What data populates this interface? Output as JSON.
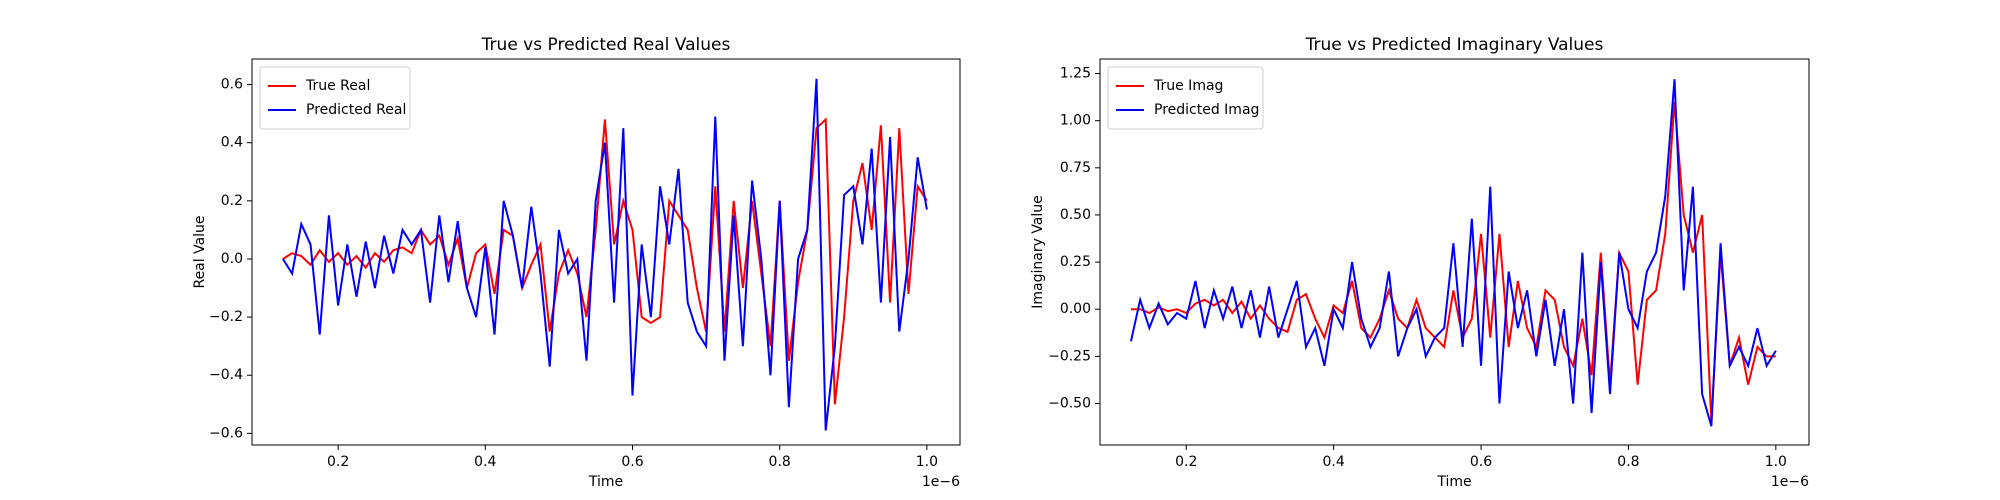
{
  "chart_data": [
    {
      "type": "line",
      "title": "True vs Predicted Real Values",
      "x_label": "Time",
      "y_label": "Real Value",
      "x_offset_label": "1e−6",
      "legend": "upper left",
      "x": [
        0.125,
        0.1375,
        0.15,
        0.1625,
        0.175,
        0.1875,
        0.2,
        0.2125,
        0.225,
        0.2375,
        0.25,
        0.2625,
        0.275,
        0.2875,
        0.3,
        0.3125,
        0.325,
        0.3375,
        0.35,
        0.3625,
        0.375,
        0.3875,
        0.4,
        0.4125,
        0.425,
        0.4375,
        0.45,
        0.4625,
        0.475,
        0.4875,
        0.5,
        0.5125,
        0.525,
        0.5375,
        0.55,
        0.5625,
        0.575,
        0.5875,
        0.6,
        0.6125,
        0.625,
        0.6375,
        0.65,
        0.6625,
        0.675,
        0.6875,
        0.7,
        0.7125,
        0.725,
        0.7375,
        0.75,
        0.7625,
        0.775,
        0.7875,
        0.8,
        0.8125,
        0.825,
        0.8375,
        0.85,
        0.8625,
        0.875,
        0.8875,
        0.9,
        0.9125,
        0.925,
        0.9375,
        0.95,
        0.9625,
        0.975,
        0.9875,
        1.0
      ],
      "series": [
        {
          "name": "True Real",
          "color": "#ff0000",
          "values": [
            0,
            0.02,
            0.01,
            -0.02,
            0.03,
            -0.01,
            0.02,
            -0.02,
            0.01,
            -0.03,
            0.02,
            -0.01,
            0.03,
            0.04,
            0.02,
            0.1,
            0.05,
            0.08,
            -0.02,
            0.07,
            -0.1,
            0.02,
            0.05,
            -0.12,
            0.1,
            0.08,
            -0.1,
            -0.02,
            0.05,
            -0.25,
            -0.05,
            0.03,
            -0.05,
            -0.2,
            0.1,
            0.48,
            0.05,
            0.2,
            0.1,
            -0.2,
            -0.22,
            -0.2,
            0.2,
            0.15,
            0.1,
            -0.1,
            -0.25,
            0.25,
            -0.25,
            0.2,
            -0.1,
            0.2,
            -0.05,
            -0.3,
            0.2,
            -0.35,
            -0.08,
            0.1,
            0.45,
            0.48,
            -0.5,
            -0.2,
            0.2,
            0.33,
            0.1,
            0.46,
            -0.15,
            0.45,
            -0.12,
            0.25,
            0.2
          ]
        },
        {
          "name": "Predicted Real",
          "color": "#0000ff",
          "values": [
            0,
            -0.05,
            0.12,
            0.05,
            -0.26,
            0.15,
            -0.16,
            0.05,
            -0.13,
            0.06,
            -0.1,
            0.08,
            -0.05,
            0.1,
            0.05,
            0.1,
            -0.15,
            0.15,
            -0.08,
            0.13,
            -0.1,
            -0.2,
            0.04,
            -0.26,
            0.2,
            0.08,
            -0.1,
            0.18,
            -0.05,
            -0.37,
            0.1,
            -0.05,
            0,
            -0.35,
            0.2,
            0.4,
            -0.15,
            0.45,
            -0.47,
            0.05,
            -0.2,
            0.25,
            0.05,
            0.31,
            -0.15,
            -0.25,
            -0.3,
            0.49,
            -0.35,
            0.15,
            -0.3,
            0.27,
            0,
            -0.4,
            0.2,
            -0.51,
            0,
            0.1,
            0.62,
            -0.59,
            -0.3,
            0.22,
            0.25,
            0.05,
            0.38,
            -0.15,
            0.42,
            -0.25,
            0,
            0.35,
            0.17
          ]
        }
      ],
      "xlim": [
        0.083,
        1.045
      ],
      "ylim": [
        -0.64,
        0.688
      ],
      "xticks": [
        0.2,
        0.4,
        0.6,
        0.8,
        {
          "value": 1,
          "label": "1.0"
        }
      ],
      "yticks": [
        {
          "value": -0.6,
          "label": "−0.6"
        },
        {
          "value": -0.4,
          "label": "−0.4"
        },
        {
          "value": -0.2,
          "label": "−0.2"
        },
        {
          "value": 0,
          "label": "0.0"
        },
        0.2,
        0.4,
        0.6
      ]
    },
    {
      "type": "line",
      "title": "True vs Predicted Imaginary Values",
      "x_label": "Time",
      "y_label": "Imaginary Value",
      "x_offset_label": "1e−6",
      "legend": "upper left",
      "x": [
        0.125,
        0.1375,
        0.15,
        0.1625,
        0.175,
        0.1875,
        0.2,
        0.2125,
        0.225,
        0.2375,
        0.25,
        0.2625,
        0.275,
        0.2875,
        0.3,
        0.3125,
        0.325,
        0.3375,
        0.35,
        0.3625,
        0.375,
        0.3875,
        0.4,
        0.4125,
        0.425,
        0.4375,
        0.45,
        0.4625,
        0.475,
        0.4875,
        0.5,
        0.5125,
        0.525,
        0.5375,
        0.55,
        0.5625,
        0.575,
        0.5875,
        0.6,
        0.6125,
        0.625,
        0.6375,
        0.65,
        0.6625,
        0.675,
        0.6875,
        0.7,
        0.7125,
        0.725,
        0.7375,
        0.75,
        0.7625,
        0.775,
        0.7875,
        0.8,
        0.8125,
        0.825,
        0.8375,
        0.85,
        0.8625,
        0.875,
        0.8875,
        0.9,
        0.9125,
        0.925,
        0.9375,
        0.95,
        0.9625,
        0.975,
        0.9875,
        1.0
      ],
      "series": [
        {
          "name": "True Imag",
          "color": "#ff0000",
          "values": [
            0,
            0,
            -0.02,
            0.01,
            -0.01,
            0,
            -0.02,
            0.03,
            0.05,
            0.02,
            0.05,
            -0.02,
            0.04,
            -0.05,
            0.02,
            -0.05,
            -0.1,
            -0.12,
            0.05,
            0.08,
            -0.05,
            -0.15,
            0.02,
            -0.02,
            0.15,
            -0.1,
            -0.15,
            -0.05,
            0.1,
            -0.05,
            -0.1,
            0.05,
            -0.1,
            -0.15,
            -0.2,
            0.1,
            -0.15,
            -0.05,
            0.4,
            -0.15,
            0.4,
            -0.2,
            0.15,
            -0.1,
            -0.2,
            0.1,
            0.05,
            -0.2,
            -0.3,
            -0.05,
            -0.35,
            0.3,
            -0.4,
            0.3,
            0.2,
            -0.4,
            0.05,
            0.1,
            0.4,
            1.1,
            0.5,
            0.3,
            0.5,
            -0.6,
            0.3,
            -0.3,
            -0.15,
            -0.4,
            -0.2,
            -0.25,
            -0.25
          ]
        },
        {
          "name": "Predicted Imag",
          "color": "#0000ff",
          "values": [
            -0.17,
            0.05,
            -0.1,
            0.03,
            -0.08,
            -0.02,
            -0.05,
            0.15,
            -0.1,
            0.1,
            -0.05,
            0.12,
            -0.1,
            0.1,
            -0.15,
            0.12,
            -0.15,
            0,
            0.15,
            -0.2,
            -0.1,
            -0.3,
            0,
            -0.1,
            0.25,
            -0.05,
            -0.2,
            -0.1,
            0.2,
            -0.25,
            -0.1,
            0,
            -0.25,
            -0.15,
            -0.1,
            0.35,
            -0.2,
            0.48,
            -0.3,
            0.65,
            -0.5,
            0.2,
            -0.1,
            0.1,
            -0.25,
            0.05,
            -0.3,
            0,
            -0.5,
            0.3,
            -0.55,
            0.25,
            -0.45,
            0.3,
            0,
            -0.1,
            0.2,
            0.3,
            0.6,
            1.22,
            0.1,
            0.65,
            -0.45,
            -0.62,
            0.35,
            -0.3,
            -0.2,
            -0.3,
            -0.1,
            -0.3,
            -0.22
          ]
        }
      ],
      "xlim": [
        0.083,
        1.045
      ],
      "ylim": [
        -0.72,
        1.327
      ],
      "xticks": [
        0.2,
        0.4,
        0.6,
        0.8,
        {
          "value": 1,
          "label": "1.0"
        }
      ],
      "yticks": [
        {
          "value": -0.5,
          "label": "−0.50"
        },
        {
          "value": -0.25,
          "label": "−0.25"
        },
        {
          "value": 0,
          "label": "0.00"
        },
        0.25,
        {
          "value": 0.5,
          "label": "0.50"
        },
        0.75,
        {
          "value": 1,
          "label": "1.00"
        },
        1.25
      ]
    }
  ]
}
